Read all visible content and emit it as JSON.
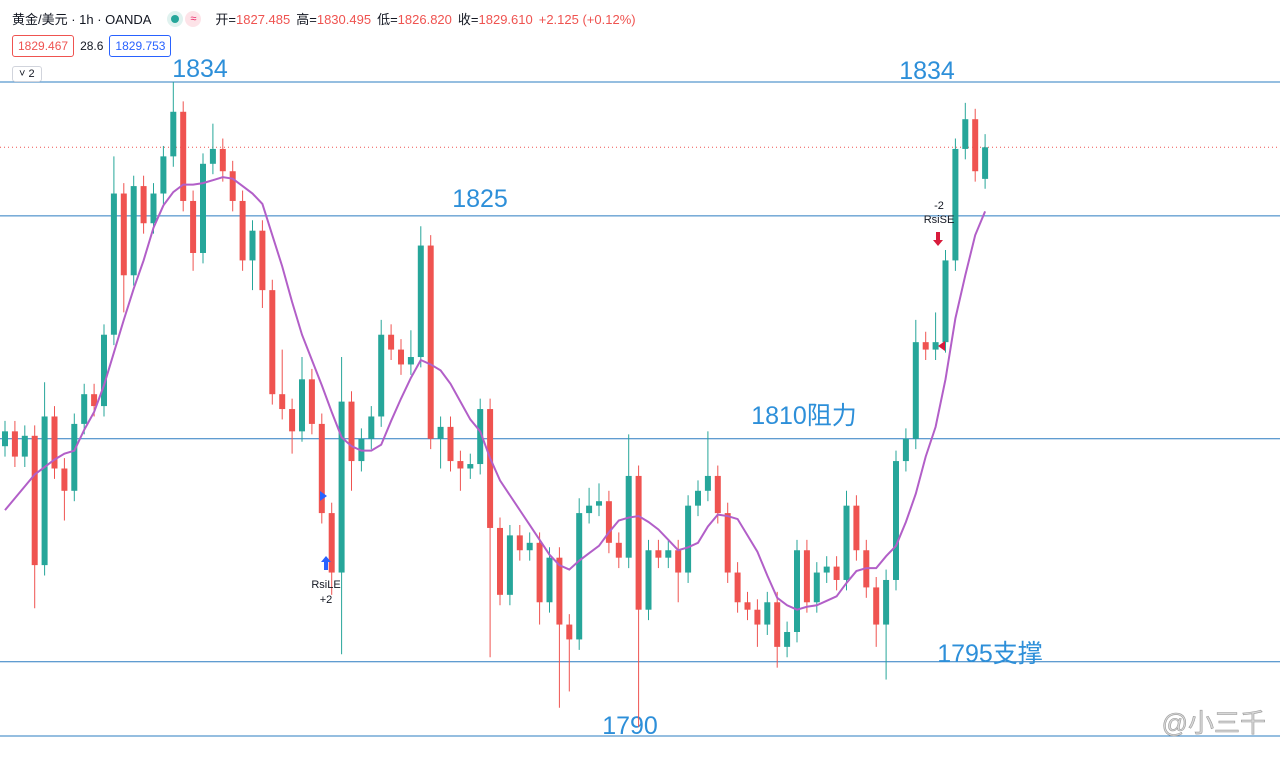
{
  "chart_data": {
    "type": "candlestick",
    "symbol": "黄金/美元 · 1h · OANDA",
    "ohlc_legend": [
      {
        "key": "开=",
        "value": "1827.485"
      },
      {
        "key": "高=",
        "value": "1830.495"
      },
      {
        "key": "低=",
        "value": "1826.820"
      },
      {
        "key": "收=",
        "value": "1829.610"
      },
      {
        "key": "",
        "value": "+2.125 (+0.12%)"
      }
    ],
    "price_boxes": [
      "1829.467",
      "28.6",
      "1829.753"
    ],
    "indicator_count": "2",
    "watermark": "@小三千",
    "up_color": "#26a69a",
    "down_color": "#ef5350",
    "ylim": [
      1787.85,
      1839.52
    ],
    "open": [
      1809.5,
      1810.5,
      1808.8,
      1810.2,
      1801.5,
      1811.5,
      1808.0,
      1806.5,
      1811.0,
      1813.0,
      1812.2,
      1817.0,
      1826.5,
      1821.0,
      1827.0,
      1824.5,
      1826.5,
      1829.0,
      1832.0,
      1826.0,
      1822.5,
      1828.5,
      1829.5,
      1828.0,
      1826.0,
      1822.0,
      1824.0,
      1820.0,
      1813.0,
      1812.0,
      1810.5,
      1814.0,
      1811.0,
      1805.0,
      1801.0,
      1812.5,
      1808.5,
      1810.0,
      1811.5,
      1817.0,
      1816.0,
      1815.0,
      1815.5,
      1823.0,
      1810.0,
      1810.8,
      1808.5,
      1808.0,
      1808.3,
      1812.0,
      1804.0,
      1799.5,
      1803.5,
      1802.5,
      1803.0,
      1799.0,
      1802.0,
      1797.5,
      1796.5,
      1805.0,
      1805.5,
      1805.8,
      1803.0,
      1802.0,
      1807.5,
      1798.5,
      1802.5,
      1802.0,
      1802.5,
      1801.0,
      1805.5,
      1806.5,
      1807.5,
      1805.0,
      1801.0,
      1799.0,
      1798.5,
      1797.5,
      1799.0,
      1796.0,
      1797.0,
      1802.5,
      1799.0,
      1801.0,
      1801.4,
      1800.5,
      1805.5,
      1802.5,
      1800.0,
      1797.5,
      1800.5,
      1808.5,
      1810.0,
      1816.5,
      1816.0,
      1816.5,
      1822.0,
      1829.5,
      1831.5,
      1827.485
    ],
    "high": [
      1811.2,
      1811.2,
      1810.9,
      1810.9,
      1813.8,
      1812.2,
      1808.7,
      1811.7,
      1813.7,
      1813.7,
      1817.7,
      1829.0,
      1827.2,
      1827.7,
      1827.7,
      1827.2,
      1829.7,
      1834.0,
      1832.7,
      1826.7,
      1829.2,
      1831.2,
      1830.2,
      1828.7,
      1826.7,
      1824.7,
      1824.7,
      1820.7,
      1816.0,
      1812.7,
      1815.5,
      1814.7,
      1811.7,
      1805.7,
      1815.5,
      1813.2,
      1810.7,
      1812.2,
      1818.0,
      1817.7,
      1816.7,
      1817.3,
      1824.3,
      1823.7,
      1811.5,
      1811.5,
      1809.2,
      1809.0,
      1812.7,
      1812.7,
      1804.7,
      1804.2,
      1804.2,
      1803.7,
      1803.7,
      1802.7,
      1802.7,
      1798.2,
      1806.0,
      1806.7,
      1807.0,
      1806.5,
      1803.7,
      1810.3,
      1808.2,
      1803.2,
      1803.2,
      1803.2,
      1803.2,
      1806.2,
      1807.2,
      1810.5,
      1808.2,
      1805.7,
      1801.7,
      1799.7,
      1799.2,
      1799.7,
      1799.7,
      1797.7,
      1803.2,
      1803.2,
      1801.7,
      1802.1,
      1802.1,
      1806.5,
      1806.2,
      1803.2,
      1800.7,
      1801.2,
      1809.2,
      1810.7,
      1818.0,
      1817.2,
      1818.5,
      1822.7,
      1830.2,
      1832.6,
      1832.2,
      1830.495
    ],
    "low": [
      1808.8,
      1808.1,
      1808.1,
      1798.6,
      1800.8,
      1807.3,
      1804.5,
      1805.8,
      1810.3,
      1811.5,
      1811.5,
      1816.3,
      1818.5,
      1820.3,
      1823.8,
      1823.8,
      1825.8,
      1828.3,
      1825.3,
      1821.3,
      1821.8,
      1827.8,
      1827.3,
      1825.3,
      1821.3,
      1820.0,
      1818.8,
      1812.3,
      1811.3,
      1809.0,
      1809.8,
      1810.3,
      1804.3,
      1799.5,
      1795.5,
      1806.5,
      1807.8,
      1809.3,
      1810.8,
      1815.3,
      1814.3,
      1814.3,
      1814.8,
      1809.3,
      1808.0,
      1807.8,
      1806.5,
      1807.3,
      1807.6,
      1795.3,
      1798.8,
      1798.8,
      1801.8,
      1801.8,
      1797.5,
      1798.3,
      1791.9,
      1793.0,
      1795.8,
      1804.3,
      1804.8,
      1802.3,
      1801.3,
      1801.3,
      1790.6,
      1797.8,
      1801.3,
      1801.3,
      1799.0,
      1800.3,
      1804.8,
      1805.8,
      1804.3,
      1800.3,
      1798.3,
      1797.8,
      1796.0,
      1796.8,
      1794.6,
      1795.3,
      1796.3,
      1798.3,
      1798.3,
      1800.3,
      1799.8,
      1799.8,
      1801.8,
      1799.3,
      1796.0,
      1793.8,
      1799.8,
      1807.8,
      1809.3,
      1815.3,
      1815.3,
      1815.8,
      1821.3,
      1828.8,
      1827.3,
      1826.82
    ],
    "close": [
      1810.5,
      1808.8,
      1810.2,
      1801.5,
      1811.5,
      1808.0,
      1806.5,
      1811.0,
      1813.0,
      1812.2,
      1817.0,
      1826.5,
      1821.0,
      1827.0,
      1824.5,
      1826.5,
      1829.0,
      1832.0,
      1826.0,
      1822.5,
      1828.5,
      1829.5,
      1828.0,
      1826.0,
      1822.0,
      1824.0,
      1820.0,
      1813.0,
      1812.0,
      1810.5,
      1814.0,
      1811.0,
      1805.0,
      1801.0,
      1812.5,
      1808.5,
      1810.0,
      1811.5,
      1817.0,
      1816.0,
      1815.0,
      1815.5,
      1823.0,
      1810.0,
      1810.8,
      1808.5,
      1808.0,
      1808.3,
      1812.0,
      1804.0,
      1799.5,
      1803.5,
      1802.5,
      1803.0,
      1799.0,
      1802.0,
      1797.5,
      1796.5,
      1805.0,
      1805.5,
      1805.8,
      1803.0,
      1802.0,
      1807.5,
      1798.5,
      1802.5,
      1802.0,
      1802.5,
      1801.0,
      1805.5,
      1806.5,
      1807.5,
      1805.0,
      1801.0,
      1799.0,
      1798.5,
      1797.5,
      1799.0,
      1796.0,
      1797.0,
      1802.5,
      1799.0,
      1801.0,
      1801.4,
      1800.5,
      1805.5,
      1802.5,
      1800.0,
      1797.5,
      1800.5,
      1808.5,
      1810.0,
      1816.5,
      1816.0,
      1816.5,
      1822.0,
      1829.5,
      1831.5,
      1828.0,
      1829.61
    ],
    "ma": {
      "color": "#b25fc8",
      "values": [
        1805.2,
        1806.0,
        1806.8,
        1807.6,
        1808.1,
        1808.6,
        1809.0,
        1809.2,
        1810.6,
        1811.8,
        1813.6,
        1815.8,
        1818.0,
        1820.1,
        1822.0,
        1824.2,
        1825.7,
        1826.6,
        1827.1,
        1827.1,
        1827.2,
        1827.4,
        1827.6,
        1827.5,
        1827.0,
        1826.5,
        1825.8,
        1823.7,
        1821.6,
        1819.2,
        1817.0,
        1815.3,
        1813.6,
        1811.8,
        1810.1,
        1809.5,
        1809.2,
        1809.2,
        1809.6,
        1811.2,
        1812.7,
        1814.1,
        1815.3,
        1815.0,
        1814.6,
        1813.7,
        1812.5,
        1811.3,
        1810.5,
        1808.7,
        1807.2,
        1806.2,
        1805.2,
        1804.2,
        1803.2,
        1802.2,
        1801.5,
        1801.2,
        1801.8,
        1802.3,
        1802.8,
        1803.7,
        1804.5,
        1804.7,
        1804.8,
        1804.4,
        1803.9,
        1803.2,
        1802.5,
        1802.7,
        1803.0,
        1804.1,
        1804.9,
        1804.8,
        1804.6,
        1803.5,
        1802.4,
        1800.8,
        1799.3,
        1798.8,
        1798.5,
        1798.7,
        1798.8,
        1799.1,
        1799.4,
        1800.3,
        1801.1,
        1801.3,
        1801.3,
        1802.1,
        1802.8,
        1804.4,
        1806.3,
        1808.8,
        1810.8,
        1814.0,
        1818.1,
        1821.0,
        1823.7,
        1825.3
      ]
    },
    "levels": [
      {
        "value": 1834,
        "label": "1834"
      },
      {
        "value": 1825,
        "label": "1825"
      },
      {
        "value": 1810,
        "label": "1810阻力"
      },
      {
        "value": 1795,
        "label": "1795支撑"
      },
      {
        "value": 1790,
        "label": "1790"
      }
    ],
    "level_color": "#2b7cc1",
    "signals": [
      {
        "name": "RsiLE",
        "amount": "+2",
        "color": "#2962ff"
      },
      {
        "name": "RsiSE",
        "amount": "-2",
        "color": "#d81b3c"
      }
    ]
  }
}
